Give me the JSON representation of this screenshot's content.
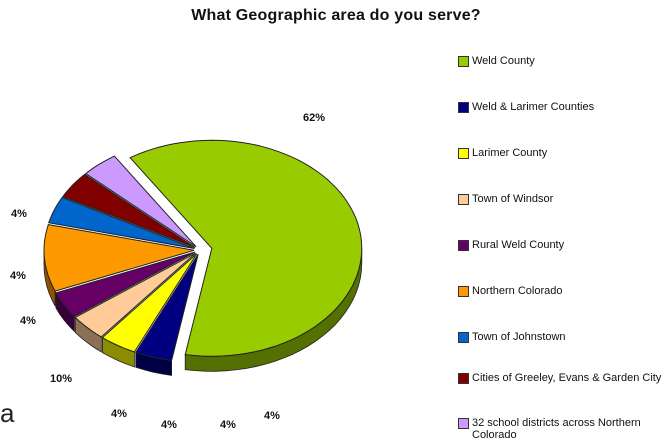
{
  "title": "What Geographic area do you serve?",
  "chart_data": {
    "type": "pie",
    "title": "What Geographic area do you serve?",
    "slices": [
      {
        "label": "Weld County",
        "value": 62,
        "display": "62%",
        "color": "#99cc00",
        "exploded": true
      },
      {
        "label": "Weld & Larimer Counties",
        "value": 4,
        "display": "4%",
        "color": "#000080"
      },
      {
        "label": "Larimer County",
        "value": 4,
        "display": "4%",
        "color": "#ffff00"
      },
      {
        "label": "Town of Windsor",
        "value": 4,
        "display": "4%",
        "color": "#ffcc99"
      },
      {
        "label": "Rural Weld County",
        "value": 4,
        "display": "4%",
        "color": "#660066"
      },
      {
        "label": "Northern Colorado",
        "value": 10,
        "display": "10%",
        "color": "#ff9900"
      },
      {
        "label": "Town of Johnstown",
        "value": 4,
        "display": "4%",
        "color": "#0066cc"
      },
      {
        "label": "Cities of Greeley, Evans & Garden City",
        "value": 4,
        "display": "4%",
        "color": "#800000"
      },
      {
        "label": "32 school districts across Northern Colorado",
        "value": 4,
        "display": "4%",
        "color": "#cc99ff"
      }
    ],
    "legend_position": "right"
  },
  "stray_text": "a"
}
